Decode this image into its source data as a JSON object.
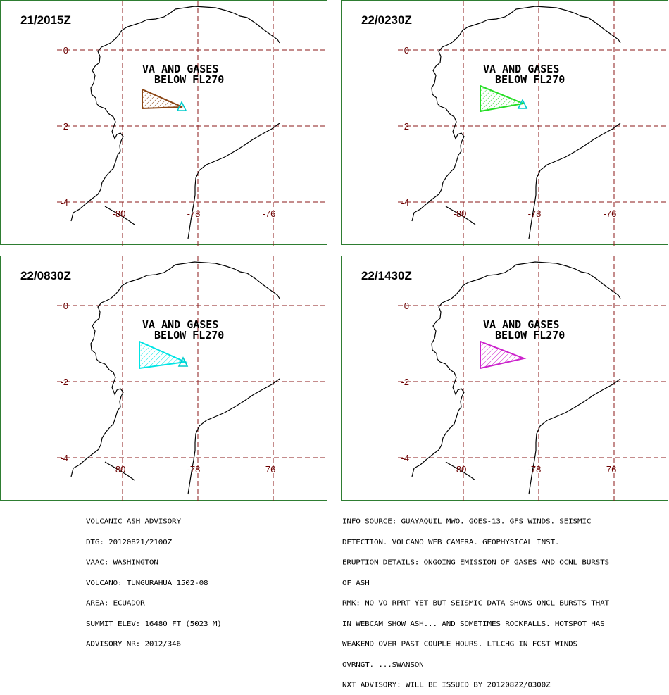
{
  "panels": [
    {
      "time": "21/2015Z",
      "polygon_color": "#8b4513"
    },
    {
      "time": "22/0230Z",
      "polygon_color": "#22dd22"
    },
    {
      "time": "22/0830Z",
      "polygon_color": "#00e5e5"
    },
    {
      "time": "22/1430Z",
      "polygon_color": "#cc22cc"
    }
  ],
  "map_label": [
    "VA  AND GASES",
    "BELOW FL270"
  ],
  "lat_labels": [
    "0",
    "-2",
    "-4"
  ],
  "lon_labels": [
    "-80",
    "-78",
    "-76"
  ],
  "colors": {
    "grid": "#8b1a1a",
    "label": "#6b0000",
    "coast": "#000000",
    "volcano": "#00cccc",
    "border": "#2e7d32"
  },
  "advisory_left": [
    "VOLCANIC ASH ADVISORY",
    "DTG: 20120821/2100Z",
    "VAAC: WASHINGTON",
    "VOLCANO: TUNGURAHUA 1502-08",
    "AREA: ECUADOR",
    "SUMMIT ELEV: 16480 FT (5023 M)",
    "ADVISORY NR: 2012/346"
  ],
  "advisory_right": [
    "INFO SOURCE: GUAYAQUIL MWO. GOES-13. GFS WINDS. SEISMIC",
    "DETECTION. VOLCANO WEB CAMERA. GEOPHYSICAL INST.",
    "ERUPTION DETAILS: ONGOING EMISSION OF GASES AND OCNL BURSTS",
    "OF ASH",
    "RMK: NO VO RPRT YET BUT SEISMIC DATA SHOWS ONCL BURSTS THAT",
    "IN WEBCAM SHOW ASH... AND SOMETIMES ROCKFALLS. HOTSPOT HAS",
    "WEAKEND OVER PAST COUPLE HOURS. LTLCHG IN FCST WINDS",
    "OVRNGT. ...SWANSON",
    "NXT ADVISORY: WILL BE ISSUED BY 20120822/0300Z"
  ]
}
